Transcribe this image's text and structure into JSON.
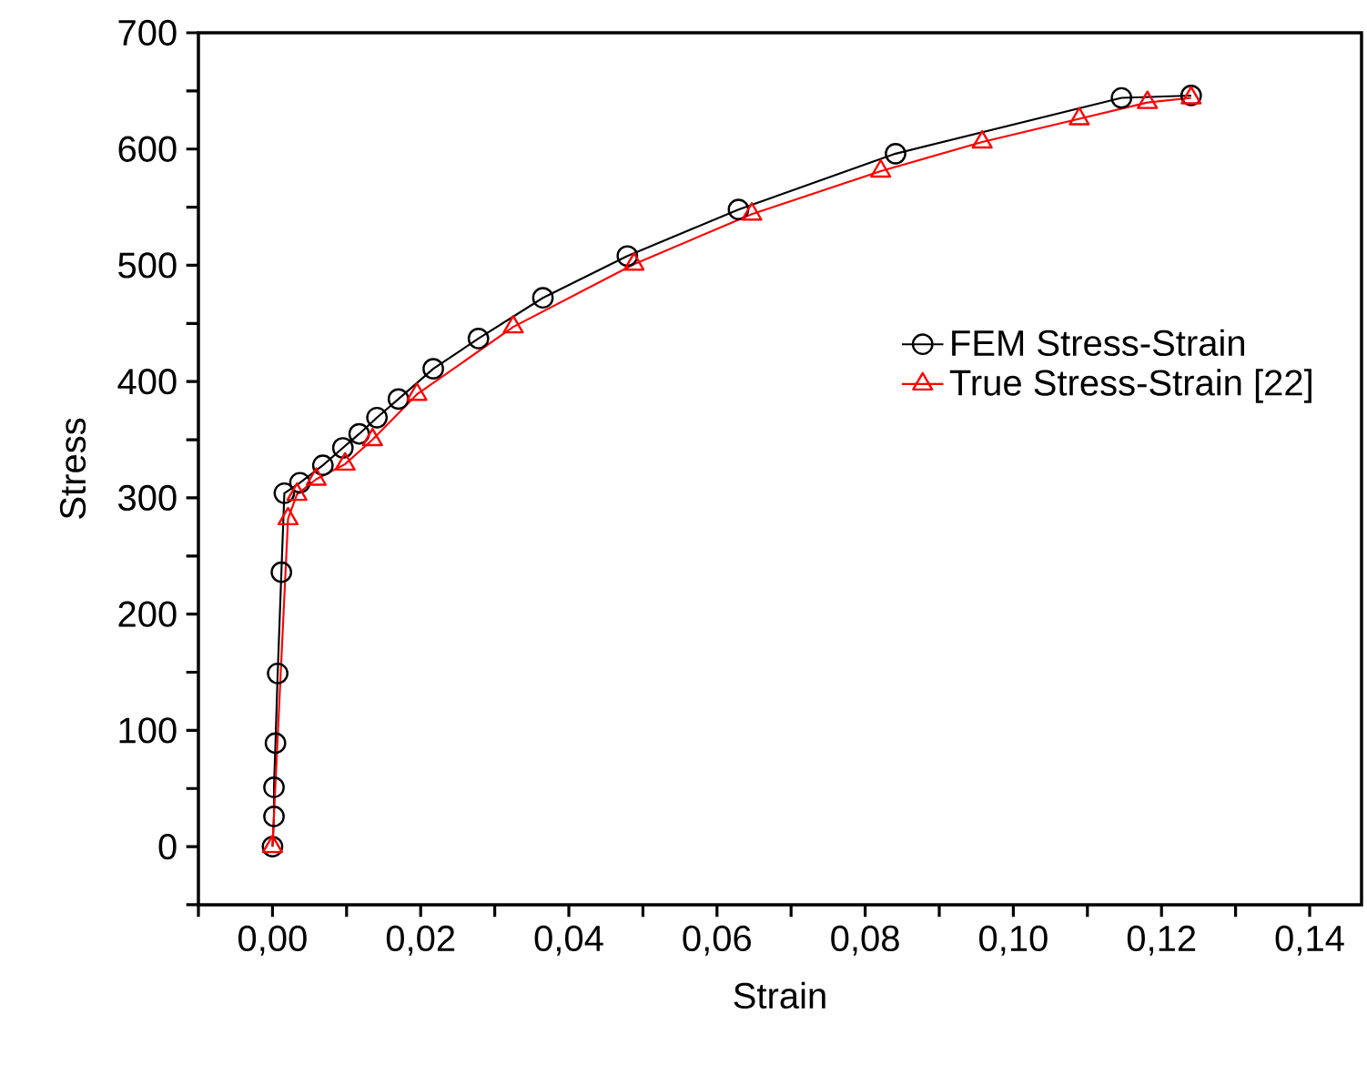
{
  "chart_data": {
    "type": "line",
    "xlabel": "Strain",
    "ylabel": "Stress",
    "xlim": [
      -0.01,
      0.147
    ],
    "ylim": [
      -50,
      700
    ],
    "xticks": [
      {
        "value": -0.01,
        "label": null
      },
      {
        "value": 0,
        "label": "0,00"
      },
      {
        "value": 0.01,
        "label": null
      },
      {
        "value": 0.02,
        "label": "0,02"
      },
      {
        "value": 0.03,
        "label": null
      },
      {
        "value": 0.04,
        "label": "0,04"
      },
      {
        "value": 0.05,
        "label": null
      },
      {
        "value": 0.06,
        "label": "0,06"
      },
      {
        "value": 0.07,
        "label": null
      },
      {
        "value": 0.08,
        "label": "0,08"
      },
      {
        "value": 0.09,
        "label": null
      },
      {
        "value": 0.1,
        "label": "0,10"
      },
      {
        "value": 0.11,
        "label": null
      },
      {
        "value": 0.12,
        "label": "0,12"
      },
      {
        "value": 0.13,
        "label": null
      },
      {
        "value": 0.14,
        "label": "0,14"
      }
    ],
    "yticks": [
      {
        "value": -50,
        "label": null
      },
      0,
      {
        "value": 50,
        "label": null
      },
      100,
      {
        "value": 150,
        "label": null
      },
      200,
      {
        "value": 250,
        "label": null
      },
      300,
      {
        "value": 350,
        "label": null
      },
      400,
      {
        "value": 450,
        "label": null
      },
      500,
      {
        "value": 550,
        "label": null
      },
      600,
      {
        "value": 650,
        "label": null
      },
      700
    ],
    "grid": false,
    "legend": "right",
    "line_style": "solid",
    "series": [
      {
        "name": "FEM Stress-Strain",
        "color": "#000000",
        "marker": "circle",
        "x": [
          0,
          0.0002,
          0.0002,
          0.0004,
          0.0007,
          0.0012,
          0.0016,
          0.0037,
          0.0068,
          0.0095,
          0.0117,
          0.0141,
          0.017,
          0.0217,
          0.0278,
          0.0365,
          0.0479,
          0.0629,
          0.0841,
          0.1146,
          0.124
        ],
        "values": [
          0,
          26,
          51,
          89,
          149,
          236,
          304,
          313,
          328,
          343,
          355,
          369,
          385,
          411,
          437,
          472,
          508,
          548,
          596,
          644,
          646
        ]
      },
      {
        "name": "True Stress-Strain [22]",
        "color": "#ff0000",
        "marker": "triangle",
        "x": [
          0,
          0.0021,
          0.0033,
          0.0059,
          0.0098,
          0.0135,
          0.0195,
          0.0325,
          0.0488,
          0.0647,
          0.0821,
          0.0958,
          0.1089,
          0.1181,
          0.124
        ],
        "values": [
          0,
          282,
          303,
          316,
          329,
          350,
          389,
          447,
          501,
          544,
          581,
          606,
          626,
          640,
          644
        ]
      }
    ]
  }
}
